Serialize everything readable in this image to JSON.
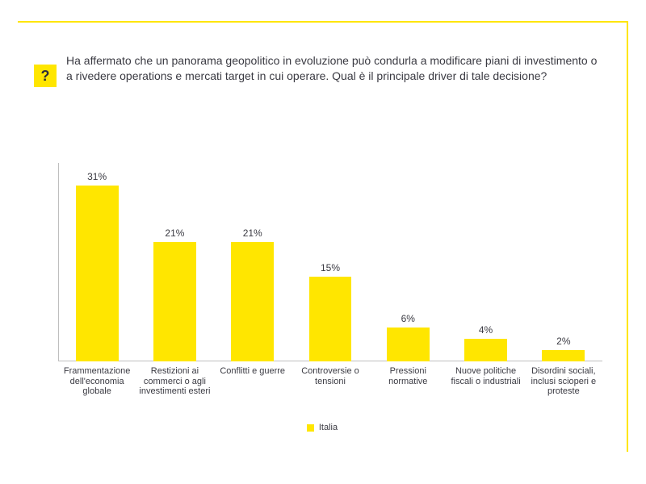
{
  "frame": {
    "border_color": "#ffe600"
  },
  "question": {
    "mark": "?",
    "mark_bg": "#ffe600",
    "mark_color": "#2e2e38",
    "mark_fontsize": 18,
    "text": "Ha affermato che un panorama geopolitico in evoluzione può condurla a modificare piani di investimento o a rivedere operations e mercati target in cui operare. Qual è il principale driver di tale decisione?",
    "text_color": "#3a3a42",
    "text_fontsize": 14
  },
  "chart": {
    "type": "bar",
    "categories": [
      "Frammentazione dell'economia globale",
      "Restizioni ai commerci o agli investimenti esteri",
      "Conflitti e guerre",
      "Controversie o tensioni",
      "Pressioni normative",
      "Nuove politiche fiscali o industriali",
      "Disordini sociali, inclusi scioperi e proteste"
    ],
    "values": [
      31,
      21,
      21,
      15,
      6,
      4,
      2
    ],
    "value_labels": [
      "31%",
      "21%",
      "21%",
      "15%",
      "6%",
      "4%",
      "2%"
    ],
    "bar_color": "#ffe600",
    "bar_width_ratio": 0.55,
    "ylim": [
      0,
      35
    ],
    "axis_color": "#bfbfbf",
    "axis_label_color": "#3a3a42",
    "axis_fontsize": 11,
    "datalabel_color": "#3a3a42",
    "datalabel_fontsize": 12,
    "legend": {
      "label": "Italia",
      "fontsize": 11,
      "color": "#3a3a42"
    },
    "background_color": "#ffffff"
  }
}
